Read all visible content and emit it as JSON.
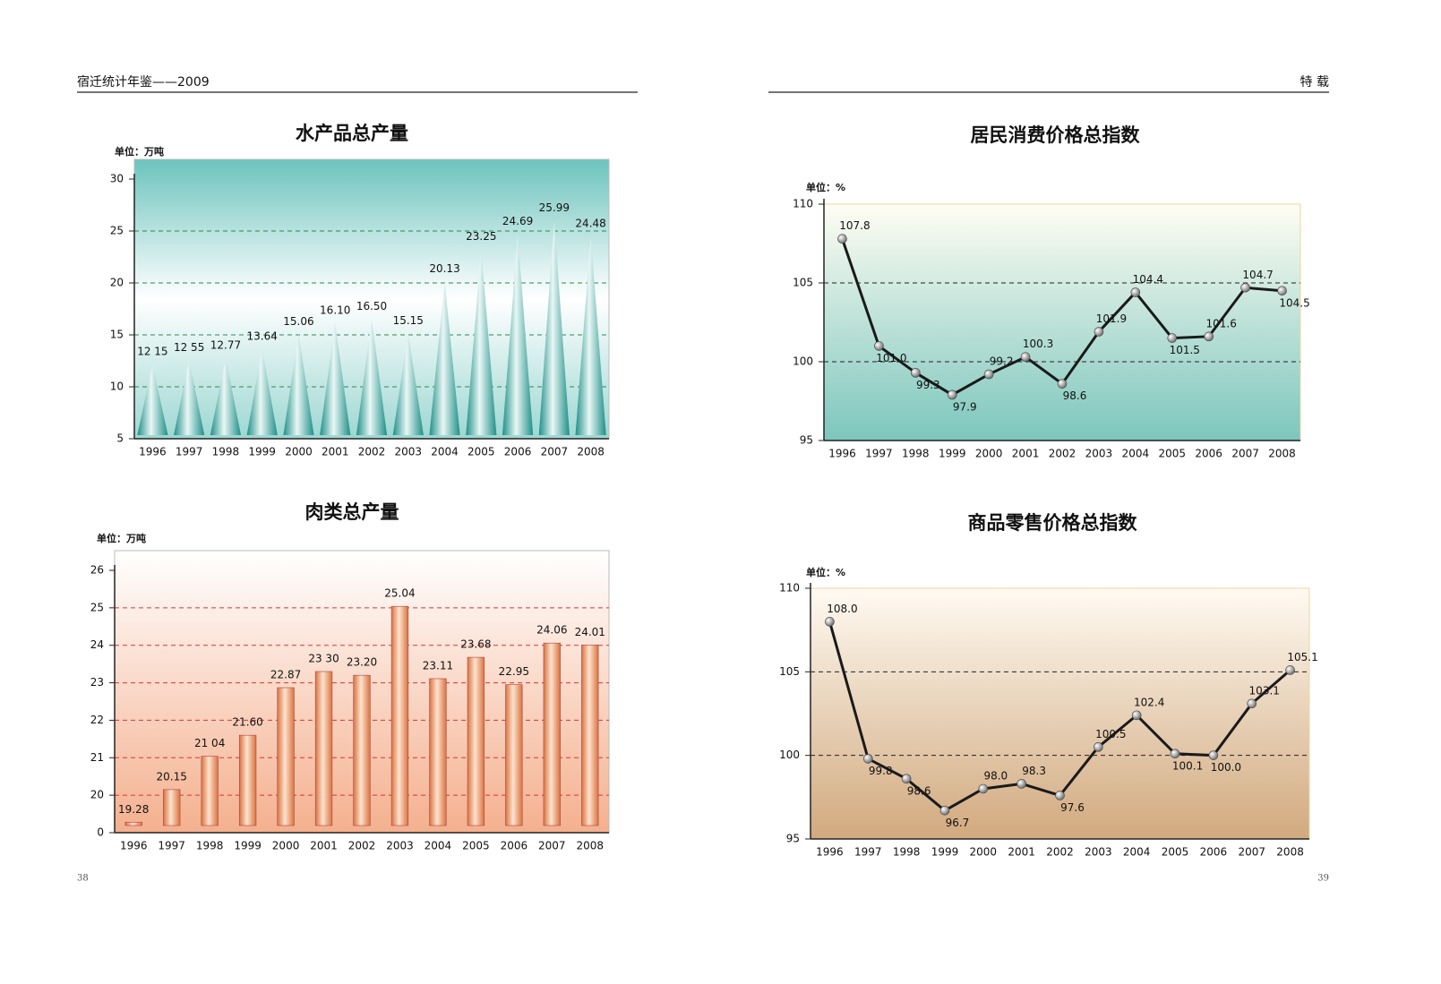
{
  "header": {
    "left": "宿迁统计年鉴——2009",
    "right": "特 载"
  },
  "footer": {
    "left": "38",
    "right": "39"
  },
  "chart_data": [
    {
      "type": "cone",
      "title": "水产品总产量",
      "unit": "单位：万吨",
      "categories": [
        "1996",
        "1997",
        "1998",
        "1999",
        "2000",
        "2001",
        "2002",
        "2003",
        "2004",
        "2005",
        "2006",
        "2007",
        "2008"
      ],
      "values": [
        12.15,
        12.55,
        12.77,
        13.64,
        15.06,
        16.1,
        16.5,
        15.15,
        20.13,
        23.25,
        24.69,
        25.99,
        24.48
      ],
      "value_labels": [
        "12 15",
        "12 55",
        "12.77",
        "13.64",
        "15.06",
        "16.10",
        "16.50",
        "15.15",
        "20.13",
        "23.25",
        "24.69",
        "25.99",
        "24.48"
      ],
      "color": "#2e9f98",
      "ylim": [
        5,
        30
      ],
      "yticks": [
        5,
        10,
        15,
        20,
        25,
        30
      ],
      "grid": true
    },
    {
      "type": "bar",
      "title": "肉类总产量",
      "unit": "单位：万吨",
      "categories": [
        "1996",
        "1997",
        "1998",
        "1999",
        "2000",
        "2001",
        "2002",
        "2003",
        "2004",
        "2005",
        "2006",
        "2007",
        "2008"
      ],
      "values": [
        19.28,
        20.15,
        21.04,
        21.6,
        22.87,
        23.3,
        23.2,
        25.04,
        23.11,
        23.68,
        22.95,
        24.06,
        24.01
      ],
      "value_labels": [
        "19.28",
        "20.15",
        "21 04",
        "21.60",
        "22.87",
        "23 30",
        "23.20",
        "25.04",
        "23.11",
        "23.68",
        "22.95",
        "24.06",
        "24.01"
      ],
      "color": "#ef9a6a",
      "ylim": [
        0,
        26
      ],
      "axis_break": 19,
      "yticks": [
        0,
        20,
        21,
        22,
        23,
        24,
        25,
        26
      ],
      "grid": true
    },
    {
      "type": "line",
      "title": "居民消费价格总指数",
      "unit": "单位：%",
      "categories": [
        "1996",
        "1997",
        "1998",
        "1999",
        "2000",
        "2001",
        "2002",
        "2003",
        "2004",
        "2005",
        "2006",
        "2007",
        "2008"
      ],
      "values": [
        107.8,
        101.0,
        99.3,
        97.9,
        99.2,
        100.3,
        98.6,
        101.9,
        104.4,
        101.5,
        101.6,
        104.7,
        104.5
      ],
      "value_labels": [
        "107.8",
        "101.0",
        "99.3",
        "97.9",
        "99.2",
        "100.3",
        "98.6",
        "101.9",
        "104.4",
        "101.5",
        "101.6",
        "104.7",
        "104.5"
      ],
      "color": "#1a1a1a",
      "ylim": [
        95,
        110
      ],
      "yticks": [
        95,
        100,
        105,
        110
      ],
      "grid": true
    },
    {
      "type": "line",
      "title": "商品零售价格总指数",
      "unit": "单位：%",
      "categories": [
        "1996",
        "1997",
        "1998",
        "1999",
        "2000",
        "2001",
        "2002",
        "2003",
        "2004",
        "2005",
        "2006",
        "2007",
        "2008"
      ],
      "values": [
        108.0,
        99.8,
        98.6,
        96.7,
        98.0,
        98.3,
        97.6,
        100.5,
        102.4,
        100.1,
        100.0,
        103.1,
        105.1
      ],
      "value_labels": [
        "108.0",
        "99.8",
        "98.6",
        "96.7",
        "98.0",
        "98.3",
        "97.6",
        "100.5",
        "102.4",
        "100.1",
        "100.0",
        "103.1",
        "105.1"
      ],
      "color": "#1a1a1a",
      "ylim": [
        95,
        110
      ],
      "yticks": [
        95,
        100,
        105,
        110
      ],
      "grid": true
    }
  ]
}
